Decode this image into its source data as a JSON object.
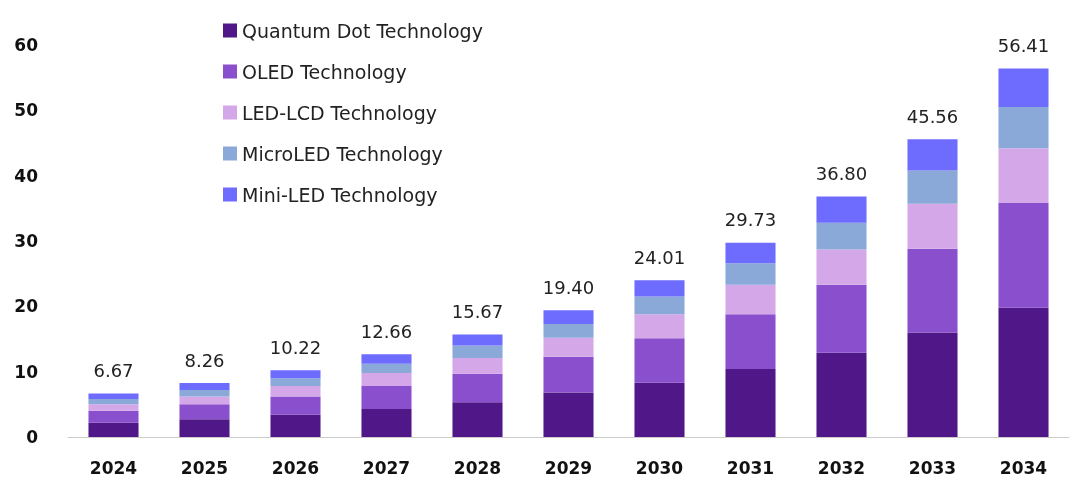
{
  "chart_data": {
    "type": "bar",
    "stacked": true,
    "categories": [
      "2024",
      "2025",
      "2026",
      "2027",
      "2028",
      "2029",
      "2030",
      "2031",
      "2032",
      "2033",
      "2034"
    ],
    "series": [
      {
        "name": "Quantum Dot Technology",
        "color": "#4f1787",
        "values": [
          2.2,
          2.7,
          3.4,
          4.3,
          5.3,
          6.8,
          8.3,
          10.4,
          12.9,
          16.0,
          19.8
        ]
      },
      {
        "name": "OLED Technology",
        "color": "#8a4fcc",
        "values": [
          1.8,
          2.3,
          2.8,
          3.5,
          4.4,
          5.5,
          6.8,
          8.4,
          10.4,
          12.8,
          16.0
        ]
      },
      {
        "name": "LED-LCD Technology",
        "color": "#d4a8e8",
        "values": [
          1.0,
          1.2,
          1.6,
          2.0,
          2.4,
          2.9,
          3.7,
          4.5,
          5.4,
          6.9,
          8.4
        ]
      },
      {
        "name": "MicroLED Technology",
        "color": "#8aa8d8",
        "values": [
          0.8,
          1.0,
          1.2,
          1.4,
          1.9,
          2.1,
          2.7,
          3.3,
          4.1,
          5.1,
          6.3
        ]
      },
      {
        "name": "Mini-LED Technology",
        "color": "#6e6bff",
        "values": [
          0.87,
          1.06,
          1.22,
          1.46,
          1.67,
          2.1,
          2.51,
          3.13,
          4.0,
          4.76,
          5.91
        ]
      }
    ],
    "totals": [
      "6.67",
      "8.26",
      "10.22",
      "12.66",
      "15.67",
      "19.40",
      "24.01",
      "29.73",
      "36.80",
      "45.56",
      "56.41"
    ],
    "ylim": [
      0,
      60
    ],
    "yticks": [
      0,
      10,
      20,
      30,
      40,
      50,
      60
    ],
    "grid": false,
    "legend": "top left"
  }
}
